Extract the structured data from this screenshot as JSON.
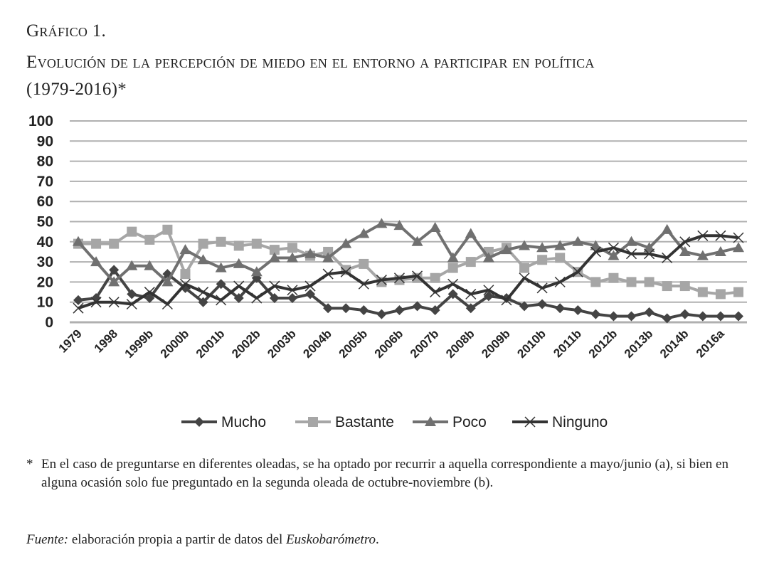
{
  "title_line1": "Gráfico 1.",
  "title_line2": "Evolución de la percepción de miedo en el entorno a participar en política",
  "title_line3": "(1979-2016)*",
  "note_star": "*",
  "note_text": "En el caso de preguntarse en diferentes oleadas, se ha optado por recurrir a aquella correspondiente a mayo/junio (a), si bien en alguna ocasión solo fue preguntado en la segunda oleada de octubre-noviembre (b).",
  "source_label": "Fuente:",
  "source_text": " elaboración propia a partir de datos del ",
  "source_work": "Euskobarómetro",
  "source_end": ".",
  "chart_data": {
    "type": "line",
    "title": "",
    "xlabel": "",
    "ylabel": "",
    "ylim": [
      0,
      100
    ],
    "yticks": [
      0,
      10,
      20,
      30,
      40,
      50,
      60,
      70,
      80,
      90,
      100
    ],
    "grid": true,
    "legend": "bottom",
    "categories": [
      "1979",
      "",
      "1998",
      "",
      "1999b",
      "",
      "2000b",
      "",
      "2001b",
      "",
      "2002b",
      "",
      "2003b",
      "",
      "2004b",
      "",
      "2005b",
      "",
      "2006b",
      "",
      "2007b",
      "",
      "2008b",
      "",
      "2009b",
      "",
      "2010b",
      "",
      "2011b",
      "",
      "2012b",
      "",
      "2013b",
      "",
      "2014b",
      "",
      "2016a",
      ""
    ],
    "series": [
      {
        "name": "Mucho",
        "marker": "diamond",
        "color": "#444444",
        "values": [
          11,
          12,
          26,
          14,
          12,
          24,
          17,
          10,
          19,
          12,
          22,
          12,
          12,
          14,
          7,
          7,
          6,
          4,
          6,
          8,
          6,
          14,
          7,
          13,
          12,
          8,
          9,
          7,
          6,
          4,
          3,
          3,
          5,
          2,
          4,
          3,
          3,
          3
        ]
      },
      {
        "name": "Bastante",
        "marker": "square",
        "color": "#a6a6a6",
        "values": [
          39,
          39,
          39,
          45,
          41,
          46,
          24,
          39,
          40,
          38,
          39,
          36,
          37,
          33,
          35,
          26,
          29,
          20,
          21,
          22,
          22,
          27,
          30,
          35,
          37,
          27,
          31,
          32,
          25,
          20,
          22,
          20,
          20,
          18,
          18,
          15,
          14,
          15
        ]
      },
      {
        "name": "Poco",
        "marker": "triangle",
        "color": "#707070",
        "values": [
          40,
          30,
          20,
          28,
          28,
          20,
          36,
          31,
          27,
          29,
          25,
          32,
          32,
          34,
          32,
          39,
          44,
          49,
          48,
          40,
          47,
          32,
          44,
          32,
          36,
          38,
          37,
          38,
          40,
          38,
          33,
          40,
          37,
          46,
          35,
          33,
          35,
          37
        ]
      },
      {
        "name": "Ninguno",
        "marker": "x",
        "color": "#333333",
        "values": [
          7,
          10,
          10,
          9,
          15,
          9,
          19,
          15,
          11,
          18,
          12,
          18,
          16,
          18,
          24,
          25,
          19,
          21,
          22,
          23,
          15,
          19,
          14,
          16,
          11,
          22,
          17,
          20,
          25,
          35,
          37,
          34,
          34,
          32,
          40,
          43,
          43,
          42
        ]
      }
    ]
  }
}
